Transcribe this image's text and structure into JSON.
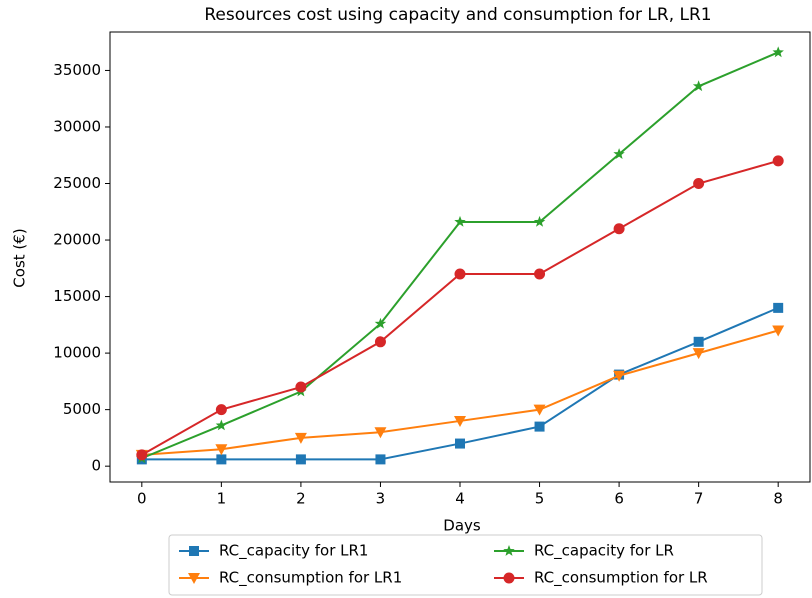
{
  "chart_data": {
    "type": "line",
    "title": "Resources cost using capacity and consumption for LR, LR1",
    "x_label": "Days",
    "y_label": "Cost (€)",
    "x": [
      0,
      1,
      2,
      3,
      4,
      5,
      6,
      7,
      8
    ],
    "xlim": [
      -0.4,
      8.4
    ],
    "xticks": [
      0,
      1,
      2,
      3,
      4,
      5,
      6,
      7,
      8
    ],
    "ylim": [
      -1400,
      38400
    ],
    "yticks": [
      0,
      5000,
      10000,
      15000,
      20000,
      25000,
      30000,
      35000
    ],
    "grid": false,
    "legend": "bottom",
    "series": [
      {
        "name": "RC_capacity for LR1",
        "color": "#1f77b4",
        "marker": "square",
        "values": [
          600,
          600,
          600,
          600,
          2000,
          3500,
          8100,
          11000,
          14000
        ]
      },
      {
        "name": "RC_consumption for LR1",
        "color": "#ff7f0e",
        "marker": "triangle-down",
        "values": [
          1000,
          1500,
          2500,
          3000,
          4000,
          5000,
          8000,
          10000,
          12000
        ]
      },
      {
        "name": "RC_capacity for LR",
        "color": "#2ca02c",
        "marker": "star",
        "values": [
          700,
          3600,
          6600,
          12600,
          21600,
          21600,
          27600,
          33600,
          36600
        ]
      },
      {
        "name": "RC_consumption for LR",
        "color": "#d62728",
        "marker": "circle",
        "values": [
          1000,
          5000,
          7000,
          11000,
          17000,
          17000,
          21000,
          25000,
          27000
        ]
      }
    ]
  }
}
